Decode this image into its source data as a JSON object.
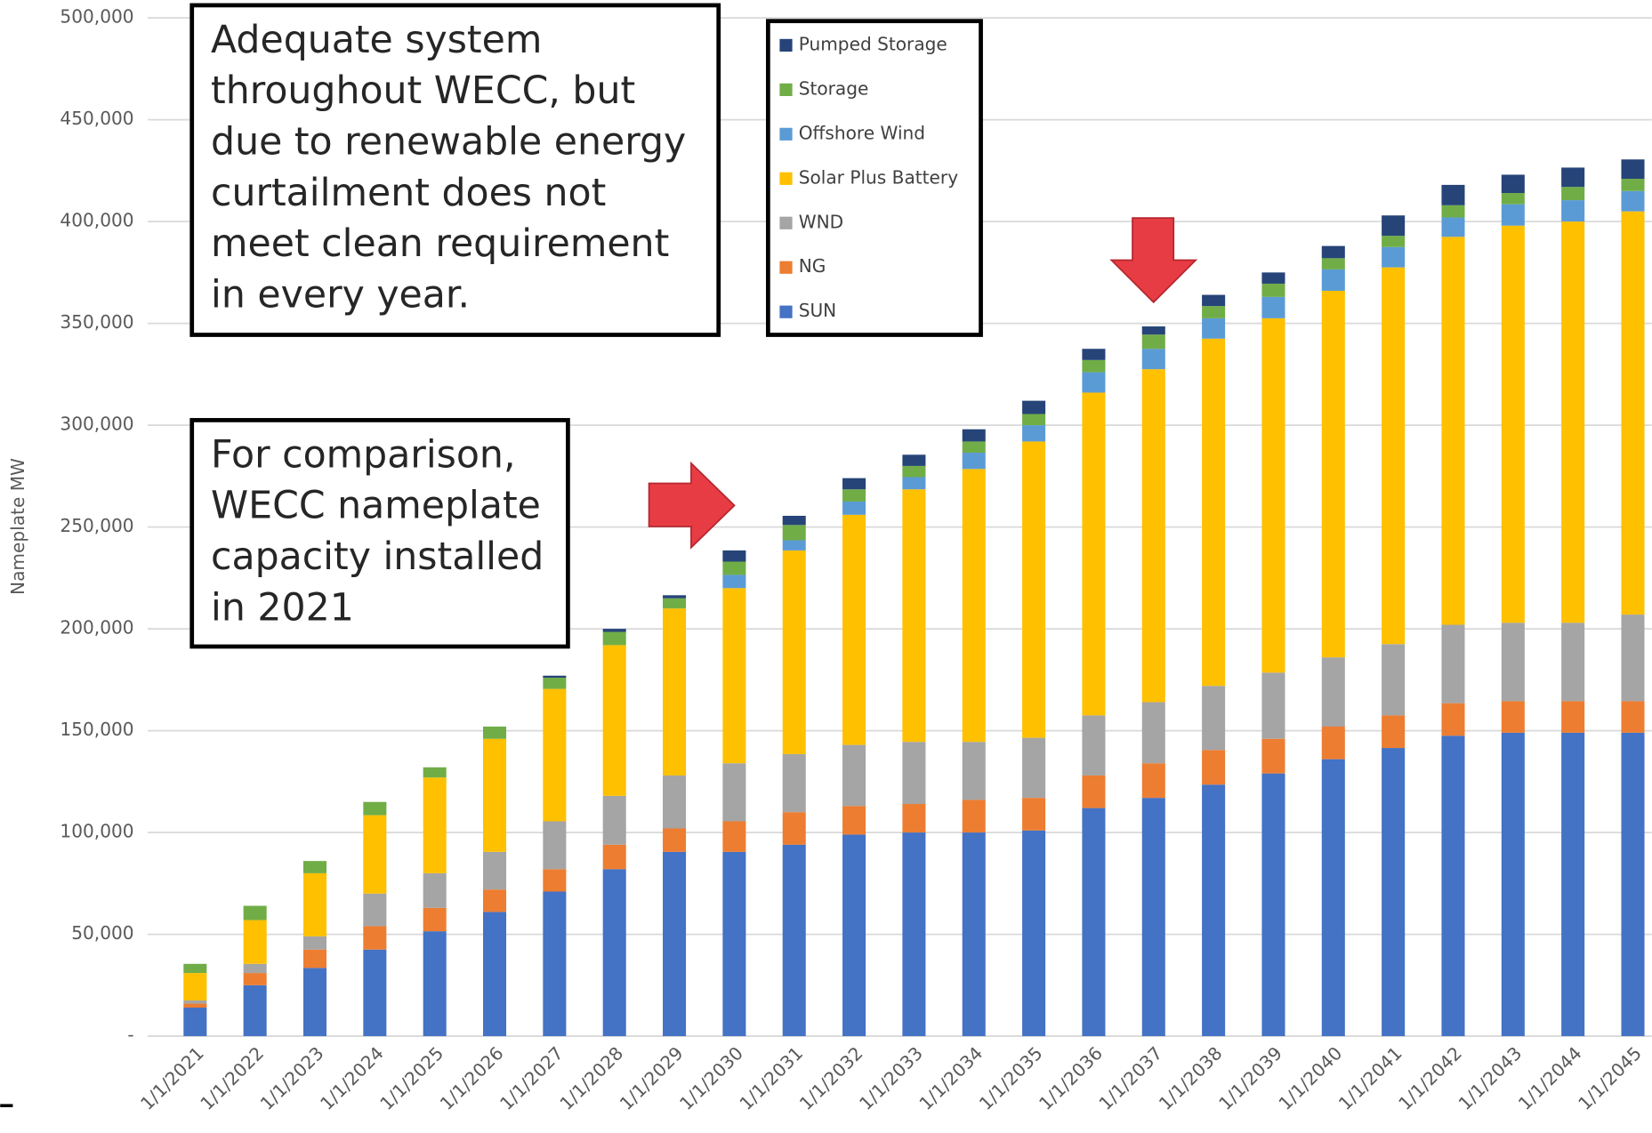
{
  "chart_data": {
    "type": "stacked_bar",
    "y_label": "Nameplate MW",
    "categories": [
      "1/1/2021",
      "1/1/2022",
      "1/1/2023",
      "1/1/2024",
      "1/1/2025",
      "1/1/2026",
      "1/1/2027",
      "1/1/2028",
      "1/1/2029",
      "1/1/2030",
      "1/1/2031",
      "1/1/2032",
      "1/1/2033",
      "1/1/2034",
      "1/1/2035",
      "1/1/2036",
      "1/1/2037",
      "1/1/2038",
      "1/1/2039",
      "1/1/2040",
      "1/1/2041",
      "1/1/2042",
      "1/1/2043",
      "1/1/2044",
      "1/1/2045"
    ],
    "series": [
      {
        "name": "SUN",
        "color": "#4472c4",
        "values": [
          14000,
          25000,
          33500,
          42500,
          51500,
          61000,
          71000,
          82000,
          90500,
          90500,
          94000,
          99000,
          100000,
          100000,
          101000,
          112000,
          117000,
          123500,
          129000,
          136000,
          141500,
          147500,
          149000,
          149000,
          149000
        ]
      },
      {
        "name": "NG",
        "color": "#ed7d31",
        "values": [
          2000,
          6000,
          9000,
          11500,
          11500,
          11000,
          11000,
          12000,
          11500,
          15000,
          16000,
          14000,
          14000,
          16000,
          16000,
          16000,
          17000,
          17000,
          17000,
          16000,
          16000,
          16000,
          15500,
          15500,
          15500
        ]
      },
      {
        "name": "WND",
        "color": "#a5a5a5",
        "values": [
          1500,
          4500,
          6500,
          16000,
          17000,
          18500,
          23500,
          24000,
          26000,
          28500,
          28500,
          30000,
          30500,
          28500,
          29500,
          29500,
          30000,
          31500,
          32500,
          34000,
          35000,
          38500,
          38500,
          38500,
          42500
        ]
      },
      {
        "name": "Solar Plus Battery",
        "color": "#ffc000",
        "values": [
          13500,
          21500,
          31000,
          38500,
          47000,
          55500,
          65000,
          74000,
          82000,
          86000,
          100000,
          113000,
          124000,
          134000,
          145500,
          158500,
          163500,
          170500,
          174000,
          180000,
          185000,
          190500,
          195000,
          197000,
          198000
        ]
      },
      {
        "name": "Offshore Wind",
        "color": "#5b9bd5",
        "values": [
          0,
          0,
          0,
          0,
          0,
          0,
          0,
          0,
          0,
          6500,
          5000,
          6500,
          6000,
          8000,
          8000,
          10000,
          10000,
          10000,
          10500,
          10500,
          10000,
          9500,
          10500,
          10500,
          10000
        ]
      },
      {
        "name": "Storage",
        "color": "#70ad47",
        "values": [
          4500,
          7000,
          6000,
          6500,
          5000,
          6000,
          5500,
          6500,
          5000,
          6500,
          7500,
          6000,
          5500,
          5500,
          5500,
          6000,
          7000,
          6000,
          6500,
          5500,
          5500,
          6000,
          5500,
          6500,
          6000
        ]
      },
      {
        "name": "Pumped Storage",
        "color": "#264478",
        "values": [
          0,
          0,
          0,
          0,
          0,
          0,
          1000,
          1500,
          1500,
          5500,
          4500,
          5500,
          5500,
          6000,
          6500,
          5500,
          4000,
          5500,
          5500,
          6000,
          10000,
          10000,
          9000,
          9500,
          9500
        ]
      }
    ],
    "ylim": [
      0,
      500000
    ],
    "yticks": [
      {
        "value": 0,
        "label": "-"
      },
      {
        "value": 50000,
        "label": "50,000"
      },
      {
        "value": 100000,
        "label": "100,000"
      },
      {
        "value": 150000,
        "label": "150,000"
      },
      {
        "value": 200000,
        "label": "200,000"
      },
      {
        "value": 250000,
        "label": "250,000"
      },
      {
        "value": 300000,
        "label": "300,000"
      },
      {
        "value": 350000,
        "label": "350,000"
      },
      {
        "value": 400000,
        "label": "400,000"
      },
      {
        "value": 450000,
        "label": "450,000"
      },
      {
        "value": 500000,
        "label": "500,000"
      }
    ],
    "grid": true,
    "legend": "top",
    "annotations": [
      {
        "lines": [
          "Adequate system",
          "throughout WECC, but",
          "due to renewable energy",
          "curtailment does not",
          "meet clean requirement",
          "in every year."
        ]
      },
      {
        "lines": [
          "For comparison,",
          "WECC nameplate",
          "capacity installed",
          "in 2021"
        ]
      }
    ]
  }
}
